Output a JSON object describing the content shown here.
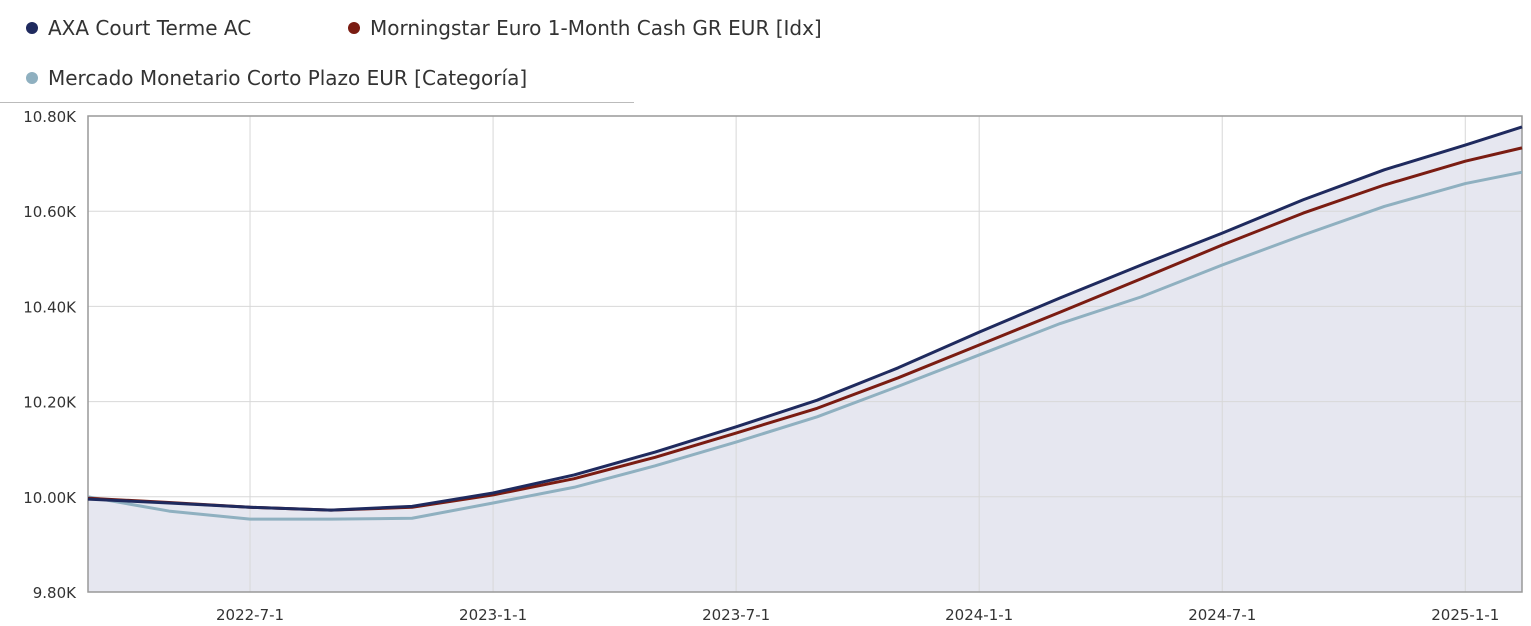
{
  "chart_data": {
    "type": "line",
    "title": "",
    "xlabel": "",
    "ylabel": "",
    "x_months_from": "2022-03-01",
    "x": [
      0,
      2,
      4,
      6,
      8,
      10,
      12,
      14,
      16,
      18,
      20,
      22,
      24,
      26,
      28,
      30,
      32,
      34,
      35.4
    ],
    "series": [
      {
        "name": "AXA Court Terme AC",
        "color": "#1f2a5e",
        "values": [
          9.995,
          9.987,
          9.978,
          9.972,
          9.98,
          10.008,
          10.046,
          10.094,
          10.147,
          10.203,
          10.271,
          10.346,
          10.418,
          10.487,
          10.554,
          10.624,
          10.687,
          10.739,
          10.777
        ]
      },
      {
        "name": "Morningstar Euro 1-Month Cash GR EUR [Idx]",
        "color": "#7a1c12",
        "values": [
          9.997,
          9.988,
          9.978,
          9.972,
          9.978,
          10.004,
          10.038,
          10.083,
          10.134,
          10.186,
          10.25,
          10.319,
          10.388,
          10.458,
          10.529,
          10.596,
          10.655,
          10.705,
          10.733
        ]
      },
      {
        "name": "Mercado Monetario Corto Plazo EUR [Categoría]",
        "color": "#8fb0c0",
        "values": [
          10.0,
          9.97,
          9.953,
          9.953,
          9.955,
          9.987,
          10.02,
          10.065,
          10.115,
          10.168,
          10.232,
          10.298,
          10.364,
          10.42,
          10.487,
          10.55,
          10.61,
          10.658,
          10.682
        ]
      }
    ],
    "yticks": [
      "9.80K",
      "10.00K",
      "10.20K",
      "10.40K",
      "10.60K",
      "10.80K"
    ],
    "ytick_values": [
      9.8,
      10.0,
      10.2,
      10.4,
      10.6,
      10.8
    ],
    "xticks": [
      "2022-7-1",
      "2023-1-1",
      "2023-7-1",
      "2024-1-1",
      "2024-7-1",
      "2025-1-1"
    ],
    "xtick_months": [
      4,
      10,
      16,
      22,
      28,
      34
    ],
    "ylim": [
      9.8,
      10.8
    ],
    "xlim": [
      0,
      35.4
    ],
    "grid": true,
    "legend_position": "top-left",
    "area_fill": "#e6e7f0"
  }
}
